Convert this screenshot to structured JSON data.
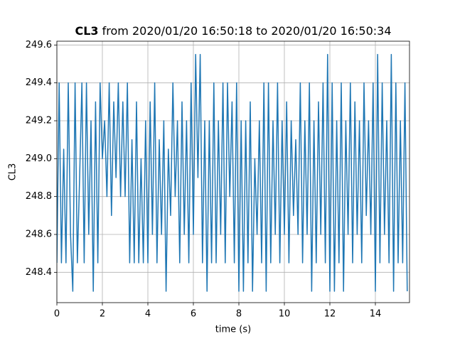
{
  "chart_data": {
    "type": "line",
    "title_bold": "CL3",
    "title": "from 2020/01/20 16:50:18 to 2020/01/20 16:50:34",
    "xlabel": "time (s)",
    "ylabel": "CL3",
    "grid": true,
    "xlim": [
      0,
      15.5
    ],
    "ylim": [
      248.24,
      249.62
    ],
    "xticks": [
      0,
      2,
      4,
      6,
      8,
      10,
      12,
      14
    ],
    "yticks": [
      {
        "value": 248.4,
        "label": "248.4"
      },
      {
        "value": 248.6,
        "label": "248.6"
      },
      {
        "value": 248.8,
        "label": "248.8"
      },
      {
        "value": 249,
        "label": "249.0"
      },
      {
        "value": 249.2,
        "label": "249.2"
      },
      {
        "value": 249.4,
        "label": "249.4"
      },
      {
        "value": 249.6,
        "label": "249.6"
      }
    ],
    "x": [
      0,
      0.1,
      0.2,
      0.3,
      0.4,
      0.5,
      0.6,
      0.7,
      0.8,
      0.9,
      1,
      1.1,
      1.2,
      1.3,
      1.4,
      1.5,
      1.6,
      1.7,
      1.8,
      1.9,
      2,
      2.1,
      2.2,
      2.3,
      2.4,
      2.5,
      2.6,
      2.7,
      2.8,
      2.9,
      3,
      3.1,
      3.2,
      3.3,
      3.4,
      3.5,
      3.6,
      3.7,
      3.8,
      3.9,
      4,
      4.1,
      4.2,
      4.3,
      4.4,
      4.5,
      4.6,
      4.7,
      4.8,
      4.9,
      5,
      5.1,
      5.2,
      5.3,
      5.4,
      5.5,
      5.6,
      5.7,
      5.8,
      5.9,
      6,
      6.1,
      6.2,
      6.3,
      6.4,
      6.5,
      6.6,
      6.7,
      6.8,
      6.9,
      7,
      7.1,
      7.2,
      7.3,
      7.4,
      7.5,
      7.6,
      7.7,
      7.8,
      7.9,
      8,
      8.1,
      8.2,
      8.3,
      8.4,
      8.5,
      8.6,
      8.7,
      8.8,
      8.9,
      9,
      9.1,
      9.2,
      9.3,
      9.4,
      9.5,
      9.6,
      9.7,
      9.8,
      9.9,
      10,
      10.1,
      10.2,
      10.3,
      10.4,
      10.5,
      10.6,
      10.7,
      10.8,
      10.9,
      11,
      11.1,
      11.2,
      11.3,
      11.4,
      11.5,
      11.6,
      11.7,
      11.8,
      11.9,
      12,
      12.1,
      12.2,
      12.3,
      12.4,
      12.5,
      12.6,
      12.7,
      12.8,
      12.9,
      13,
      13.1,
      13.2,
      13.3,
      13.4,
      13.5,
      13.6,
      13.7,
      13.8,
      13.9,
      14,
      14.1,
      14.2,
      14.3,
      14.4,
      14.5,
      14.6,
      14.7,
      14.8,
      14.9,
      15,
      15.1,
      15.2,
      15.3,
      15.4
    ],
    "series": [
      {
        "color": "#1f77b4",
        "values": [
          248.45,
          249.4,
          248.45,
          249.05,
          248.45,
          249.4,
          248.6,
          248.3,
          249.4,
          248.45,
          248.9,
          249.4,
          248.45,
          249.4,
          248.6,
          249.2,
          248.3,
          249.3,
          248.45,
          249.4,
          249.0,
          249.2,
          248.8,
          249.4,
          248.7,
          249.3,
          248.9,
          249.4,
          248.8,
          249.3,
          248.8,
          249.4,
          248.45,
          249.1,
          248.45,
          249.3,
          248.45,
          249.0,
          248.45,
          249.2,
          248.45,
          249.3,
          248.6,
          249.4,
          248.45,
          249.1,
          248.6,
          249.2,
          248.3,
          249.05,
          248.7,
          249.4,
          248.8,
          249.2,
          248.45,
          249.3,
          248.6,
          249.2,
          248.45,
          249.4,
          248.6,
          249.55,
          248.9,
          249.55,
          248.45,
          249.2,
          248.3,
          249.2,
          248.45,
          249.4,
          248.45,
          249.2,
          248.6,
          249.4,
          248.45,
          249.4,
          248.8,
          249.3,
          248.45,
          249.4,
          248.3,
          249.2,
          248.3,
          249.2,
          248.45,
          249.3,
          248.3,
          249.0,
          248.6,
          249.2,
          248.45,
          249.4,
          248.3,
          249.4,
          248.45,
          249.2,
          248.6,
          249.4,
          248.45,
          249.2,
          248.6,
          249.3,
          248.45,
          249.2,
          248.7,
          249.1,
          248.6,
          249.4,
          248.45,
          249.2,
          248.6,
          249.4,
          248.3,
          249.2,
          248.45,
          249.3,
          248.6,
          249.4,
          248.45,
          249.55,
          248.3,
          249.4,
          248.3,
          249.2,
          248.45,
          249.4,
          248.3,
          249.2,
          248.6,
          249.4,
          248.45,
          249.3,
          248.6,
          249.2,
          248.45,
          249.4,
          248.7,
          249.2,
          248.6,
          249.4,
          248.3,
          249.55,
          248.45,
          249.4,
          248.6,
          249.2,
          248.45,
          249.55,
          248.3,
          249.4,
          248.45,
          249.2,
          248.45,
          249.4,
          248.3
        ]
      }
    ]
  }
}
